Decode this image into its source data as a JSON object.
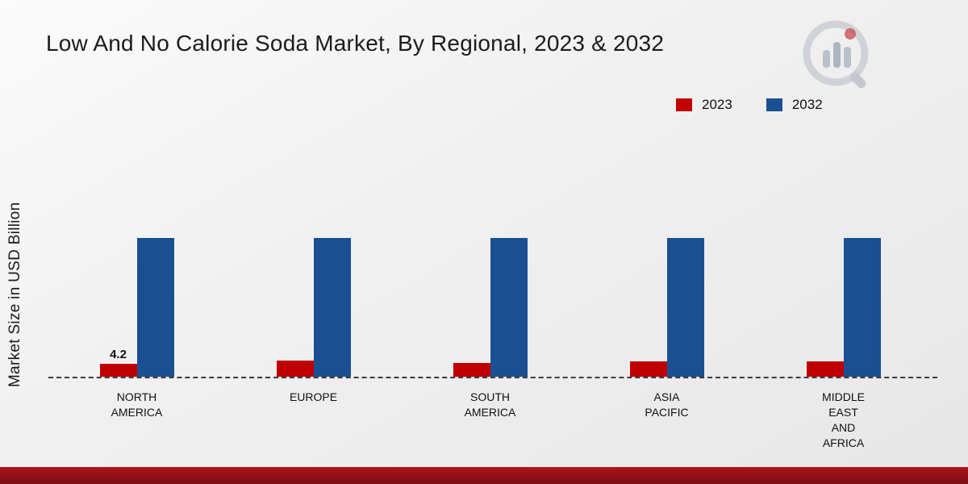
{
  "page": {
    "title": "Low And No Calorie Soda Market, By Regional, 2023 & 2032",
    "y_axis_label": "Market Size in USD Billion"
  },
  "legend": {
    "items": [
      {
        "label": "2023",
        "color": "#c00000"
      },
      {
        "label": "2032",
        "color": "#1a5091"
      }
    ]
  },
  "chart_data": {
    "type": "bar",
    "title": "Low And No Calorie Soda Market, By Regional, 2023 & 2032",
    "xlabel": "",
    "ylabel": "Market Size in USD Billion",
    "categories": [
      "North America",
      "Europe",
      "South America",
      "Asia Pacific",
      "Middle East and Africa"
    ],
    "category_label_lines": [
      [
        "NORTH",
        "AMERICA"
      ],
      [
        "EUROPE"
      ],
      [
        "SOUTH",
        "AMERICA"
      ],
      [
        "ASIA",
        "PACIFIC"
      ],
      [
        "MIDDLE",
        "EAST",
        "AND",
        "AFRICA"
      ]
    ],
    "series": [
      {
        "name": "2023",
        "color": "#c00000",
        "values": [
          4.2,
          5.3,
          4.5,
          4.9,
          5.1
        ],
        "value_labels": [
          "4.2",
          "",
          "",
          "",
          ""
        ]
      },
      {
        "name": "2032",
        "color": "#1a5091",
        "values": [
          45,
          45,
          45,
          45,
          45
        ],
        "value_labels": [
          "",
          "",
          "",
          "",
          ""
        ]
      }
    ],
    "ylim": [
      0,
      45
    ],
    "grid": false,
    "legend_position": "top-right",
    "baseline_style": "dashed"
  },
  "logo": {
    "name": "market-research-logo"
  }
}
